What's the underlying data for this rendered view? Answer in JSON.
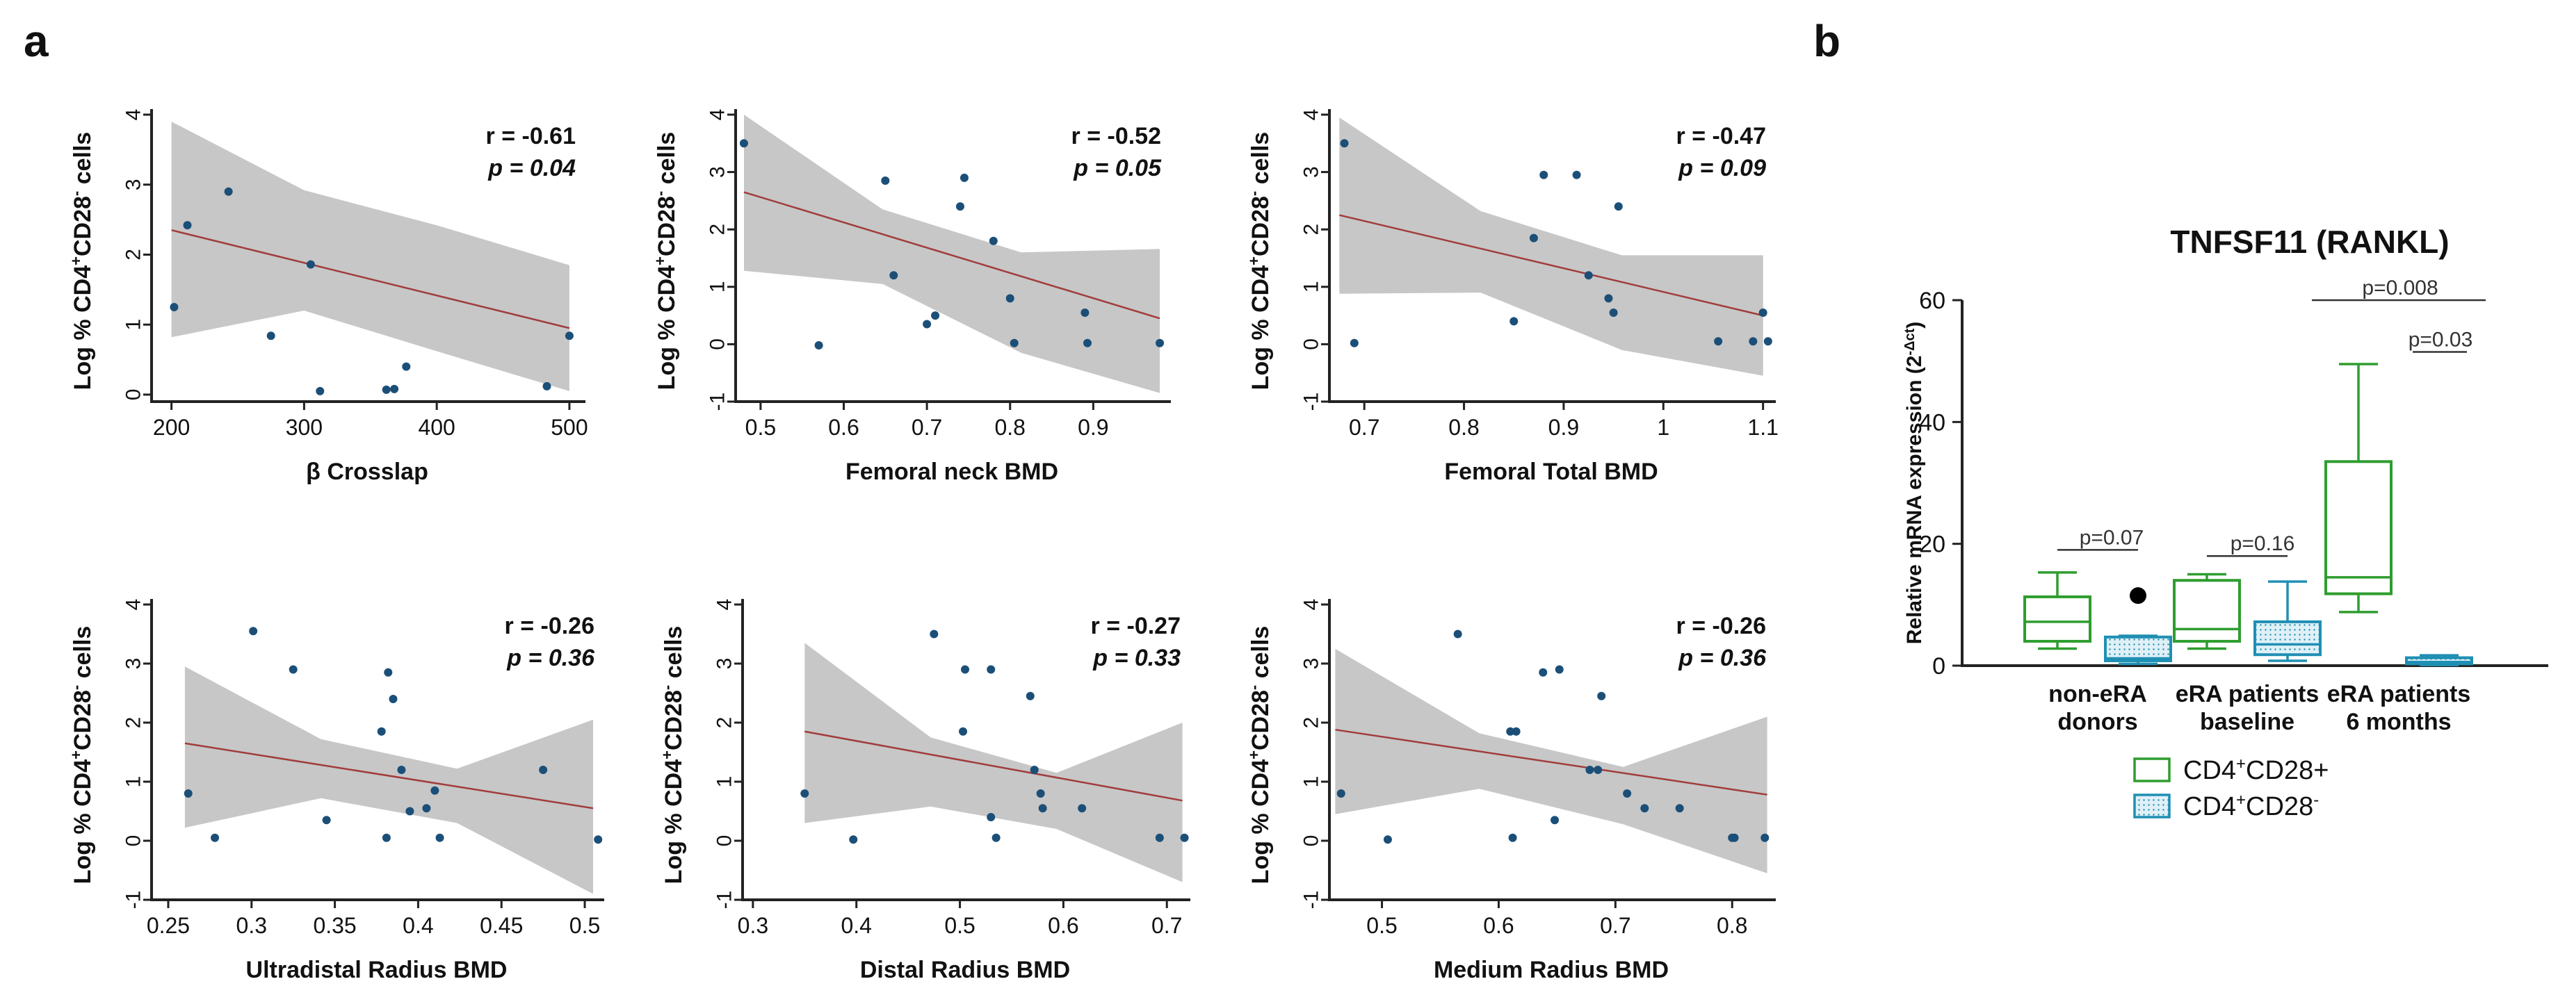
{
  "panels": {
    "a": "a",
    "b": "b"
  },
  "colors": {
    "band": "#c7c7c7",
    "fit": "#a23c3c",
    "point": "#1b4f78",
    "axis": "#222222",
    "green": "#2e9d2e",
    "blue": "#1f8fb3"
  },
  "chart_data": [
    {
      "type": "scatter",
      "panel": "a",
      "xlabel": "β Crosslap",
      "ylabel_parts": [
        "Log % CD4",
        "+",
        "CD28",
        "-",
        " cells"
      ],
      "stat_r": "r = -0.61",
      "stat_p": "p = 0.04",
      "xlim": [
        185,
        510
      ],
      "ylim": [
        -0.1,
        4
      ],
      "xticks": [
        200,
        300,
        400,
        500
      ],
      "xtick_labels": [
        "200",
        "300",
        "400",
        "500"
      ],
      "yticks": [
        0,
        1,
        2,
        3,
        4
      ],
      "ytick_labels": [
        "0",
        "1",
        "2",
        "3",
        "4"
      ],
      "x": [
        202,
        212,
        243,
        275,
        305,
        312,
        362,
        368,
        377,
        483,
        500
      ],
      "y": [
        1.25,
        2.42,
        2.9,
        0.84,
        1.86,
        0.05,
        0.07,
        0.08,
        0.4,
        0.12,
        0.84
      ],
      "fit": {
        "x1": 200,
        "y1": 2.35,
        "x2": 500,
        "y2": 0.95
      },
      "band_upper": [
        3.9,
        2.92,
        2.42,
        1.85
      ],
      "band_lower": [
        0.82,
        1.2,
        0.62,
        0.05
      ]
    },
    {
      "type": "scatter",
      "panel": "a",
      "xlabel": "Femoral neck BMD",
      "ylabel_parts": [
        "Log % CD4",
        "+",
        "CD28",
        "-",
        " cells"
      ],
      "stat_r": "r = -0.52",
      "stat_p": "p = 0.05",
      "xlim": [
        0.47,
        0.99
      ],
      "ylim": [
        -1,
        4
      ],
      "xticks": [
        0.5,
        0.6,
        0.7,
        0.8,
        0.9
      ],
      "xtick_labels": [
        "0.5",
        "0.6",
        "0.7",
        "0.8",
        "0.9"
      ],
      "yticks": [
        -1,
        0,
        1,
        2,
        3,
        4
      ],
      "ytick_labels": [
        "-1",
        "0",
        "1",
        "2",
        "3",
        "4"
      ],
      "x": [
        0.48,
        0.57,
        0.65,
        0.66,
        0.7,
        0.71,
        0.74,
        0.745,
        0.78,
        0.8,
        0.805,
        0.89,
        0.893,
        0.98
      ],
      "y": [
        3.5,
        -0.02,
        2.85,
        1.2,
        0.35,
        0.5,
        2.4,
        2.9,
        1.8,
        0.8,
        0.02,
        0.55,
        0.02,
        0.02
      ],
      "fit": {
        "x1": 0.48,
        "y1": 2.65,
        "x2": 0.98,
        "y2": 0.45
      },
      "band_upper": [
        4.0,
        2.35,
        1.6,
        1.66
      ],
      "band_lower": [
        1.28,
        1.05,
        -0.15,
        -0.85
      ]
    },
    {
      "type": "scatter",
      "panel": "a",
      "xlabel": "Femoral Total BMD",
      "ylabel_parts": [
        "Log % CD4",
        "+",
        "CD28",
        "-",
        " cells"
      ],
      "stat_r": "r = -0.47",
      "stat_p": "p = 0.09",
      "xlim": [
        0.665,
        1.11
      ],
      "ylim": [
        -1,
        4
      ],
      "xticks": [
        0.7,
        0.8,
        0.9,
        1,
        1.1
      ],
      "xtick_labels": [
        "0.7",
        "0.8",
        "0.9",
        "1",
        "1.1"
      ],
      "yticks": [
        -1,
        0,
        1,
        2,
        3,
        4
      ],
      "ytick_labels": [
        "-1",
        "0",
        "1",
        "2",
        "3",
        "4"
      ],
      "x": [
        0.68,
        0.69,
        0.85,
        0.87,
        0.88,
        0.913,
        0.925,
        0.945,
        0.95,
        0.955,
        1.055,
        1.09,
        1.1,
        1.105
      ],
      "y": [
        3.5,
        0.02,
        0.4,
        1.85,
        2.95,
        2.95,
        1.2,
        0.8,
        0.55,
        2.4,
        0.05,
        0.05,
        0.55,
        0.05
      ],
      "fit": {
        "x1": 0.675,
        "y1": 2.25,
        "x2": 1.1,
        "y2": 0.5
      },
      "band_upper": [
        3.95,
        2.32,
        1.55,
        1.55
      ],
      "band_lower": [
        0.88,
        0.9,
        -0.1,
        -0.55
      ]
    },
    {
      "type": "scatter",
      "panel": "a",
      "xlabel": "Ultradistal Radius BMD",
      "ylabel_parts": [
        "Log % CD4",
        "+",
        "CD28",
        "-",
        " cells"
      ],
      "stat_r": "r = -0.26",
      "stat_p": "p = 0.36",
      "xlim": [
        0.24,
        0.51
      ],
      "ylim": [
        -1,
        4
      ],
      "xticks": [
        0.25,
        0.3,
        0.35,
        0.4,
        0.45,
        0.5
      ],
      "xtick_labels": [
        "0.25",
        "0.3",
        "0.35",
        "0.4",
        "0.45",
        "0.5"
      ],
      "yticks": [
        -1,
        0,
        1,
        2,
        3,
        4
      ],
      "ytick_labels": [
        "-1",
        "0",
        "1",
        "2",
        "3",
        "4"
      ],
      "x": [
        0.262,
        0.278,
        0.301,
        0.325,
        0.345,
        0.378,
        0.381,
        0.382,
        0.385,
        0.39,
        0.395,
        0.405,
        0.41,
        0.413,
        0.475,
        0.508
      ],
      "y": [
        0.8,
        0.05,
        3.55,
        2.9,
        0.35,
        1.85,
        0.05,
        2.85,
        2.4,
        1.2,
        0.5,
        0.55,
        0.85,
        0.05,
        1.2,
        0.02
      ],
      "fit": {
        "x1": 0.26,
        "y1": 1.65,
        "x2": 0.505,
        "y2": 0.55
      },
      "band_upper": [
        2.95,
        1.72,
        1.22,
        2.05
      ],
      "band_lower": [
        0.22,
        0.72,
        0.3,
        -0.9
      ]
    },
    {
      "type": "scatter",
      "panel": "a",
      "xlabel": "Distal Radius BMD",
      "ylabel_parts": [
        "Log % CD4",
        "+",
        "CD28",
        "-",
        " cells"
      ],
      "stat_r": "r = -0.27",
      "stat_p": "p = 0.33",
      "xlim": [
        0.29,
        0.72
      ],
      "ylim": [
        -1,
        4
      ],
      "xticks": [
        0.3,
        0.4,
        0.5,
        0.6,
        0.7
      ],
      "xtick_labels": [
        "0.3",
        "0.4",
        "0.5",
        "0.6",
        "0.7"
      ],
      "yticks": [
        -1,
        0,
        1,
        2,
        3,
        4
      ],
      "ytick_labels": [
        "-1",
        "0",
        "1",
        "2",
        "3",
        "4"
      ],
      "x": [
        0.35,
        0.397,
        0.475,
        0.503,
        0.505,
        0.53,
        0.53,
        0.535,
        0.568,
        0.572,
        0.578,
        0.58,
        0.618,
        0.693,
        0.717
      ],
      "y": [
        0.8,
        0.02,
        3.5,
        1.85,
        2.9,
        0.4,
        2.9,
        0.05,
        2.45,
        1.2,
        0.8,
        0.55,
        0.55,
        0.05,
        0.05
      ],
      "fit": {
        "x1": 0.35,
        "y1": 1.85,
        "x2": 0.715,
        "y2": 0.68
      },
      "band_upper": [
        3.35,
        1.75,
        1.15,
        2.0
      ],
      "band_lower": [
        0.3,
        0.58,
        0.2,
        -0.7
      ]
    },
    {
      "type": "scatter",
      "panel": "a",
      "xlabel": "Medium Radius BMD",
      "ylabel_parts": [
        "Log % CD4",
        "+",
        "CD28",
        "-",
        " cells"
      ],
      "stat_r": "r = -0.26",
      "stat_p": "p = 0.36",
      "xlim": [
        0.455,
        0.835
      ],
      "ylim": [
        -1,
        4
      ],
      "xticks": [
        0.5,
        0.6,
        0.7,
        0.8
      ],
      "xtick_labels": [
        "0.5",
        "0.6",
        "0.7",
        "0.8"
      ],
      "yticks": [
        -1,
        0,
        1,
        2,
        3,
        4
      ],
      "ytick_labels": [
        "-1",
        "0",
        "1",
        "2",
        "3",
        "4"
      ],
      "x": [
        0.465,
        0.505,
        0.565,
        0.61,
        0.612,
        0.615,
        0.638,
        0.648,
        0.652,
        0.678,
        0.685,
        0.688,
        0.71,
        0.725,
        0.755,
        0.8,
        0.802,
        0.828
      ],
      "y": [
        0.8,
        0.02,
        3.5,
        1.85,
        0.05,
        1.85,
        2.85,
        0.35,
        2.9,
        1.2,
        1.2,
        2.45,
        0.8,
        0.55,
        0.55,
        0.05,
        0.05,
        0.05
      ],
      "fit": {
        "x1": 0.46,
        "y1": 1.88,
        "x2": 0.83,
        "y2": 0.78
      },
      "band_upper": [
        3.25,
        1.82,
        1.25,
        2.1
      ],
      "band_lower": [
        0.45,
        0.88,
        0.28,
        -0.55
      ]
    },
    {
      "type": "box",
      "panel": "b",
      "title": "TNFSF11 (RANKL)",
      "ylabel": "Relative mRNA expression (2",
      "ylabel_sup": "-Δct",
      "ylabel_end": ")",
      "ylim": [
        0,
        60
      ],
      "yticks": [
        0,
        20,
        40,
        60
      ],
      "ytick_labels": [
        "0",
        "20",
        "40",
        "60"
      ],
      "groups": [
        {
          "lines": [
            "non-eRA",
            "donors"
          ],
          "cd28pos": {
            "min": 2.8,
            "q1": 4.0,
            "median": 7.2,
            "q3": 11.3,
            "max": 15.3
          },
          "cd28neg": {
            "min": 0.3,
            "q1": 0.8,
            "median": 1.2,
            "q3": 4.7,
            "max": 4.9,
            "outliers": [
              11.5
            ]
          }
        },
        {
          "lines": [
            "eRA patients",
            "baseline"
          ],
          "cd28pos": {
            "min": 2.8,
            "q1": 4.0,
            "median": 6.0,
            "q3": 14.0,
            "max": 15.0
          },
          "cd28neg": {
            "min": 0.8,
            "q1": 1.8,
            "median": 3.5,
            "q3": 7.2,
            "max": 13.8,
            "outliers": []
          }
        },
        {
          "lines": [
            "eRA patients",
            "6 months"
          ],
          "cd28pos": {
            "min": 8.8,
            "q1": 11.8,
            "median": 14.5,
            "q3": 33.5,
            "max": 49.5
          },
          "cd28neg": {
            "min": 0.1,
            "q1": 0.3,
            "median": 0.6,
            "q3": 1.3,
            "max": 1.7,
            "outliers": []
          }
        }
      ],
      "annotations": [
        {
          "label": "p=0.07",
          "level": 19
        },
        {
          "label": "p=0.16",
          "level": 18
        },
        {
          "label": "p=0.008",
          "level": 60
        },
        {
          "label": "p=0.03",
          "level": 51.5
        }
      ],
      "legend": [
        {
          "base": "CD4",
          "sup1": "+",
          "mid": "CD28",
          "sup2": "",
          "tail": "+"
        },
        {
          "base": "CD4",
          "sup1": "+",
          "mid": "CD28",
          "sup2": "-",
          "tail": ""
        }
      ]
    }
  ]
}
